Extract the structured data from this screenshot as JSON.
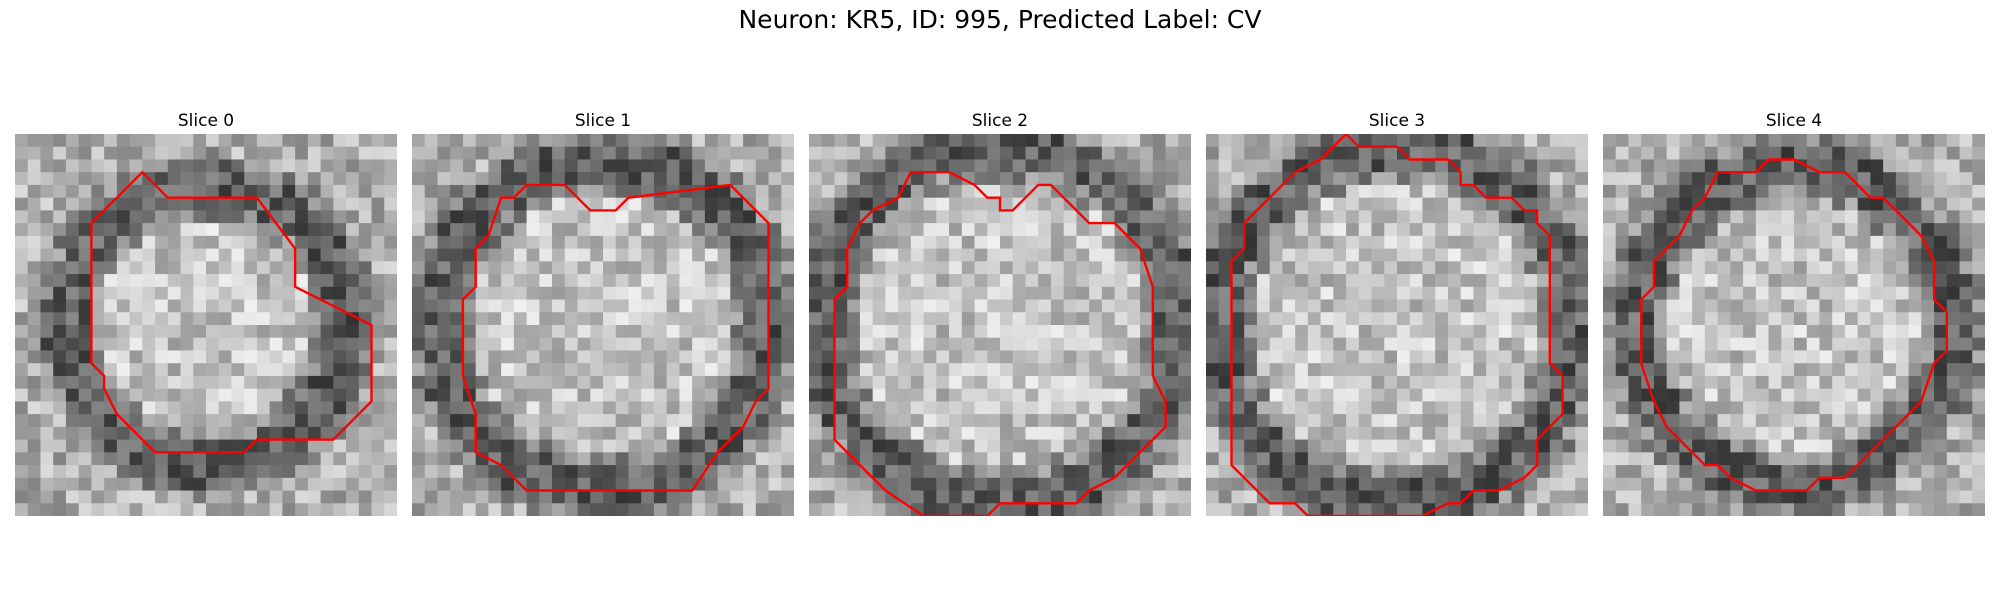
{
  "figure": {
    "suptitle": "Neuron: KR5, ID: 995, Predicted Label: CV",
    "outline_color": "#ff0000",
    "colormap": "grayscale"
  },
  "panels": [
    {
      "title": "Slice 0",
      "image": "grayscale EM patch of a round cell with red boundary outline"
    },
    {
      "title": "Slice 1",
      "image": "grayscale EM patch of a round cell with red boundary outline"
    },
    {
      "title": "Slice 2",
      "image": "grayscale EM patch of a round cell with red boundary outline"
    },
    {
      "title": "Slice 3",
      "image": "grayscale EM patch of a round cell with red boundary outline"
    },
    {
      "title": "Slice 4",
      "image": "grayscale EM patch of a round cell with red boundary outline"
    }
  ]
}
